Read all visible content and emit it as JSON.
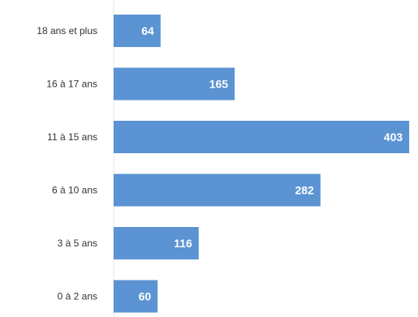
{
  "chart_data": {
    "type": "bar",
    "orientation": "horizontal",
    "categories": [
      "18 ans et plus",
      "16 à 17 ans",
      "11 à 15 ans",
      "6 à 10 ans",
      "3 à 5 ans",
      "0 à 2 ans"
    ],
    "values": [
      64,
      165,
      403,
      282,
      116,
      60
    ],
    "data_labels": [
      "64",
      "165",
      "403",
      "282",
      "116",
      "60"
    ],
    "title": "",
    "xlabel": "",
    "ylabel": "",
    "xlim": [
      0,
      415
    ],
    "grid": false,
    "legend": "none",
    "bar_color": "#5b93d3",
    "label_color": "#333333",
    "value_label_color": "#ffffff"
  }
}
